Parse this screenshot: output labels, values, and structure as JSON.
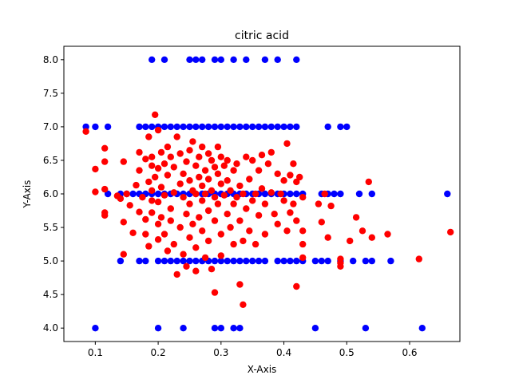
{
  "chart_data": {
    "type": "scatter",
    "title": "citric acid",
    "xlabel": "X-Axis",
    "ylabel": "Y-Axis",
    "xlim": [
      0.05,
      0.68
    ],
    "ylim": [
      3.8,
      8.2
    ],
    "xticks": [
      0.1,
      0.2,
      0.3,
      0.4,
      0.5,
      0.6
    ],
    "xtick_labels": [
      "0.1",
      "0.2",
      "0.3",
      "0.4",
      "0.5",
      "0.6"
    ],
    "yticks": [
      4.0,
      4.5,
      5.0,
      5.5,
      6.0,
      6.5,
      7.0,
      7.5,
      8.0
    ],
    "ytick_labels": [
      "4.0",
      "4.5",
      "5.0",
      "5.5",
      "6.0",
      "6.5",
      "7.0",
      "7.5",
      "8.0"
    ],
    "grid": false,
    "series": [
      {
        "color": "#0000ff",
        "points": [
          [
            0.19,
            8
          ],
          [
            0.21,
            8
          ],
          [
            0.25,
            8
          ],
          [
            0.26,
            8
          ],
          [
            0.27,
            8
          ],
          [
            0.29,
            8
          ],
          [
            0.3,
            8
          ],
          [
            0.32,
            8
          ],
          [
            0.34,
            8
          ],
          [
            0.37,
            8
          ],
          [
            0.39,
            8
          ],
          [
            0.42,
            8
          ],
          [
            0.085,
            7
          ],
          [
            0.1,
            7
          ],
          [
            0.12,
            7
          ],
          [
            0.17,
            7
          ],
          [
            0.18,
            7
          ],
          [
            0.19,
            7
          ],
          [
            0.2,
            7
          ],
          [
            0.21,
            7
          ],
          [
            0.22,
            7
          ],
          [
            0.23,
            7
          ],
          [
            0.24,
            7
          ],
          [
            0.25,
            7
          ],
          [
            0.26,
            7
          ],
          [
            0.27,
            7
          ],
          [
            0.28,
            7
          ],
          [
            0.29,
            7
          ],
          [
            0.3,
            7
          ],
          [
            0.31,
            7
          ],
          [
            0.32,
            7
          ],
          [
            0.33,
            7
          ],
          [
            0.34,
            7
          ],
          [
            0.35,
            7
          ],
          [
            0.36,
            7
          ],
          [
            0.37,
            7
          ],
          [
            0.38,
            7
          ],
          [
            0.39,
            7
          ],
          [
            0.4,
            7
          ],
          [
            0.41,
            7
          ],
          [
            0.42,
            7
          ],
          [
            0.47,
            7
          ],
          [
            0.49,
            7
          ],
          [
            0.5,
            7
          ],
          [
            0.12,
            6
          ],
          [
            0.14,
            6
          ],
          [
            0.15,
            6
          ],
          [
            0.16,
            6
          ],
          [
            0.17,
            6
          ],
          [
            0.18,
            6
          ],
          [
            0.19,
            6
          ],
          [
            0.2,
            6
          ],
          [
            0.21,
            6
          ],
          [
            0.22,
            6
          ],
          [
            0.23,
            6
          ],
          [
            0.24,
            6
          ],
          [
            0.25,
            6
          ],
          [
            0.26,
            6
          ],
          [
            0.27,
            6
          ],
          [
            0.28,
            6
          ],
          [
            0.29,
            6
          ],
          [
            0.3,
            6
          ],
          [
            0.31,
            6
          ],
          [
            0.32,
            6
          ],
          [
            0.33,
            6
          ],
          [
            0.34,
            6
          ],
          [
            0.35,
            6
          ],
          [
            0.36,
            6
          ],
          [
            0.37,
            6
          ],
          [
            0.38,
            6
          ],
          [
            0.39,
            6
          ],
          [
            0.4,
            6
          ],
          [
            0.41,
            6
          ],
          [
            0.42,
            6
          ],
          [
            0.43,
            6
          ],
          [
            0.46,
            6
          ],
          [
            0.47,
            6
          ],
          [
            0.48,
            6
          ],
          [
            0.49,
            6
          ],
          [
            0.52,
            6
          ],
          [
            0.54,
            6
          ],
          [
            0.66,
            6
          ],
          [
            0.14,
            5
          ],
          [
            0.17,
            5
          ],
          [
            0.18,
            5
          ],
          [
            0.2,
            5
          ],
          [
            0.21,
            5
          ],
          [
            0.22,
            5
          ],
          [
            0.23,
            5
          ],
          [
            0.24,
            5
          ],
          [
            0.25,
            5
          ],
          [
            0.26,
            5
          ],
          [
            0.27,
            5
          ],
          [
            0.28,
            5
          ],
          [
            0.29,
            5
          ],
          [
            0.3,
            5
          ],
          [
            0.31,
            5
          ],
          [
            0.32,
            5
          ],
          [
            0.33,
            5
          ],
          [
            0.34,
            5
          ],
          [
            0.35,
            5
          ],
          [
            0.36,
            5
          ],
          [
            0.37,
            5
          ],
          [
            0.39,
            5
          ],
          [
            0.4,
            5
          ],
          [
            0.41,
            5
          ],
          [
            0.42,
            5
          ],
          [
            0.43,
            5
          ],
          [
            0.45,
            5
          ],
          [
            0.46,
            5
          ],
          [
            0.47,
            5
          ],
          [
            0.49,
            5
          ],
          [
            0.51,
            5
          ],
          [
            0.53,
            5
          ],
          [
            0.54,
            5
          ],
          [
            0.57,
            5
          ],
          [
            0.1,
            4
          ],
          [
            0.2,
            4
          ],
          [
            0.24,
            4
          ],
          [
            0.29,
            4
          ],
          [
            0.3,
            4
          ],
          [
            0.32,
            4
          ],
          [
            0.33,
            4
          ],
          [
            0.45,
            4
          ],
          [
            0.53,
            4
          ],
          [
            0.62,
            4
          ]
        ]
      },
      {
        "color": "#ff0000",
        "points": [
          [
            0.085,
            6.93
          ],
          [
            0.1,
            6.37
          ],
          [
            0.1,
            6.03
          ],
          [
            0.115,
            6.68
          ],
          [
            0.115,
            6.48
          ],
          [
            0.115,
            6.07
          ],
          [
            0.115,
            5.72
          ],
          [
            0.115,
            5.68
          ],
          [
            0.135,
            5.97
          ],
          [
            0.14,
            5.93
          ],
          [
            0.145,
            6.48
          ],
          [
            0.145,
            5.58
          ],
          [
            0.145,
            5.1
          ],
          [
            0.15,
            6.0
          ],
          [
            0.155,
            5.83
          ],
          [
            0.16,
            5.42
          ],
          [
            0.165,
            6.13
          ],
          [
            0.17,
            6.62
          ],
          [
            0.17,
            6.35
          ],
          [
            0.17,
            5.73
          ],
          [
            0.175,
            5.95
          ],
          [
            0.18,
            6.52
          ],
          [
            0.18,
            5.62
          ],
          [
            0.18,
            5.4
          ],
          [
            0.185,
            6.85
          ],
          [
            0.185,
            6.18
          ],
          [
            0.185,
            5.22
          ],
          [
            0.19,
            6.55
          ],
          [
            0.19,
            6.42
          ],
          [
            0.19,
            6.05
          ],
          [
            0.19,
            5.9
          ],
          [
            0.19,
            5.72
          ],
          [
            0.195,
            7.18
          ],
          [
            0.195,
            6.25
          ],
          [
            0.2,
            6.95
          ],
          [
            0.2,
            6.38
          ],
          [
            0.2,
            5.88
          ],
          [
            0.2,
            5.55
          ],
          [
            0.2,
            5.32
          ],
          [
            0.205,
            6.62
          ],
          [
            0.205,
            6.1
          ],
          [
            0.205,
            5.65
          ],
          [
            0.21,
            6.45
          ],
          [
            0.21,
            5.98
          ],
          [
            0.21,
            5.4
          ],
          [
            0.215,
            6.7
          ],
          [
            0.215,
            6.28
          ],
          [
            0.215,
            5.15
          ],
          [
            0.22,
            6.55
          ],
          [
            0.22,
            5.78
          ],
          [
            0.22,
            5.6
          ],
          [
            0.225,
            6.4
          ],
          [
            0.225,
            6.02
          ],
          [
            0.225,
            5.25
          ],
          [
            0.23,
            6.85
          ],
          [
            0.23,
            4.8
          ],
          [
            0.235,
            6.6
          ],
          [
            0.235,
            6.15
          ],
          [
            0.235,
            5.5
          ],
          [
            0.24,
            6.3
          ],
          [
            0.24,
            5.95
          ],
          [
            0.24,
            5.1
          ],
          [
            0.245,
            6.48
          ],
          [
            0.245,
            5.7
          ],
          [
            0.245,
            4.92
          ],
          [
            0.25,
            6.65
          ],
          [
            0.25,
            6.2
          ],
          [
            0.25,
            5.85
          ],
          [
            0.25,
            5.35
          ],
          [
            0.255,
            6.78
          ],
          [
            0.255,
            6.05
          ],
          [
            0.255,
            5.55
          ],
          [
            0.26,
            6.42
          ],
          [
            0.26,
            6.0
          ],
          [
            0.26,
            5.2
          ],
          [
            0.26,
            4.85
          ],
          [
            0.265,
            6.55
          ],
          [
            0.265,
            6.25
          ],
          [
            0.265,
            5.65
          ],
          [
            0.27,
            6.7
          ],
          [
            0.27,
            6.12
          ],
          [
            0.27,
            5.9
          ],
          [
            0.27,
            5.45
          ],
          [
            0.275,
            6.35
          ],
          [
            0.275,
            6.0
          ],
          [
            0.275,
            5.05
          ],
          [
            0.28,
            6.6
          ],
          [
            0.28,
            6.22
          ],
          [
            0.28,
            5.75
          ],
          [
            0.28,
            5.3
          ],
          [
            0.285,
            6.5
          ],
          [
            0.285,
            6.05
          ],
          [
            0.285,
            4.88
          ],
          [
            0.29,
            6.4
          ],
          [
            0.29,
            5.95
          ],
          [
            0.29,
            5.6
          ],
          [
            0.29,
            4.53
          ],
          [
            0.295,
            6.7
          ],
          [
            0.295,
            6.3
          ],
          [
            0.295,
            5.85
          ],
          [
            0.3,
            6.55
          ],
          [
            0.3,
            6.15
          ],
          [
            0.3,
            5.4
          ],
          [
            0.3,
            5.08
          ],
          [
            0.305,
            6.42
          ],
          [
            0.305,
            5.98
          ],
          [
            0.31,
            6.5
          ],
          [
            0.31,
            6.2
          ],
          [
            0.31,
            5.7
          ],
          [
            0.315,
            6.05
          ],
          [
            0.315,
            5.5
          ],
          [
            0.32,
            6.35
          ],
          [
            0.32,
            5.85
          ],
          [
            0.32,
            5.25
          ],
          [
            0.325,
            6.45
          ],
          [
            0.325,
            5.95
          ],
          [
            0.33,
            6.12
          ],
          [
            0.33,
            5.6
          ],
          [
            0.33,
            4.65
          ],
          [
            0.335,
            6.0
          ],
          [
            0.335,
            5.3
          ],
          [
            0.335,
            4.35
          ],
          [
            0.34,
            6.55
          ],
          [
            0.34,
            5.78
          ],
          [
            0.345,
            6.22
          ],
          [
            0.345,
            5.45
          ],
          [
            0.35,
            6.5
          ],
          [
            0.35,
            5.9
          ],
          [
            0.355,
            6.0
          ],
          [
            0.355,
            5.25
          ],
          [
            0.36,
            6.35
          ],
          [
            0.36,
            5.68
          ],
          [
            0.365,
            6.58
          ],
          [
            0.365,
            6.08
          ],
          [
            0.37,
            5.85
          ],
          [
            0.37,
            5.4
          ],
          [
            0.375,
            6.45
          ],
          [
            0.38,
            6.62
          ],
          [
            0.38,
            6.02
          ],
          [
            0.385,
            5.7
          ],
          [
            0.39,
            6.3
          ],
          [
            0.39,
            5.55
          ],
          [
            0.395,
            6.0
          ],
          [
            0.4,
            6.2
          ],
          [
            0.4,
            5.9
          ],
          [
            0.405,
            6.75
          ],
          [
            0.405,
            5.45
          ],
          [
            0.41,
            6.28
          ],
          [
            0.41,
            5.72
          ],
          [
            0.415,
            6.45
          ],
          [
            0.415,
            5.85
          ],
          [
            0.42,
            6.18
          ],
          [
            0.42,
            5.6
          ],
          [
            0.42,
            4.62
          ],
          [
            0.425,
            6.25
          ],
          [
            0.43,
            5.95
          ],
          [
            0.43,
            5.45
          ],
          [
            0.43,
            5.25
          ],
          [
            0.43,
            5.05
          ],
          [
            0.455,
            5.85
          ],
          [
            0.46,
            5.58
          ],
          [
            0.465,
            6.0
          ],
          [
            0.47,
            5.35
          ],
          [
            0.475,
            5.82
          ],
          [
            0.49,
            5.03
          ],
          [
            0.49,
            4.97
          ],
          [
            0.49,
            4.92
          ],
          [
            0.505,
            5.3
          ],
          [
            0.515,
            5.65
          ],
          [
            0.525,
            5.45
          ],
          [
            0.535,
            6.18
          ],
          [
            0.54,
            5.35
          ],
          [
            0.565,
            5.4
          ],
          [
            0.615,
            5.03
          ],
          [
            0.665,
            5.43
          ]
        ]
      }
    ]
  }
}
